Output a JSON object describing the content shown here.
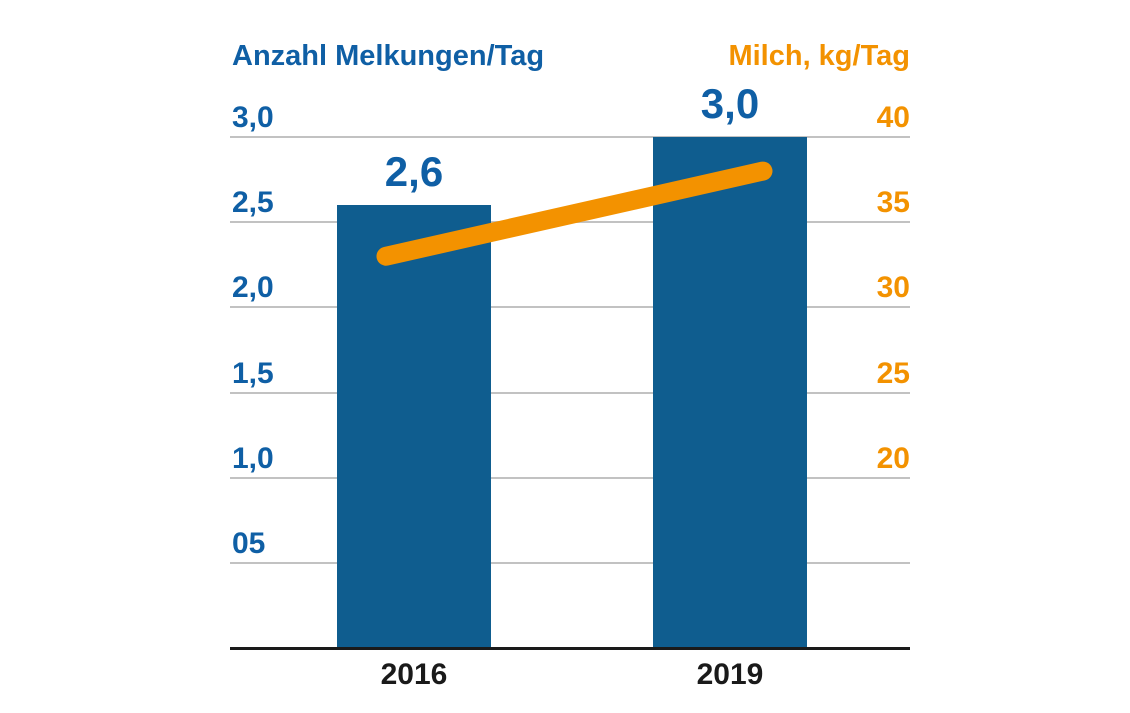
{
  "chart_data": {
    "type": "bar",
    "subtype": "bar-line-combo",
    "categories": [
      "2016",
      "2019"
    ],
    "series": [
      {
        "name": "Anzahl Melkungen/Tag",
        "type": "bar",
        "axis": "left",
        "values": [
          2.6,
          3.0
        ],
        "value_labels": [
          "2,6",
          "3,0"
        ],
        "color": "#0F5D8F"
      },
      {
        "name": "Milch, kg/Tag",
        "type": "line",
        "axis": "right",
        "values": [
          33,
          38
        ],
        "color": "#F39200"
      }
    ],
    "left_axis": {
      "title": "Anzahl Melkungen/Tag",
      "tick_labels": [
        "3,0",
        "2,5",
        "2,0",
        "1,5",
        "1,0",
        "05"
      ],
      "tick_values": [
        3.0,
        2.5,
        2.0,
        1.5,
        1.0,
        0.5
      ],
      "range": [
        0,
        3.0
      ],
      "color": "#0F5FA5"
    },
    "right_axis": {
      "title": "Milch, kg/Tag",
      "tick_labels": [
        "40",
        "35",
        "30",
        "25",
        "20"
      ],
      "tick_values": [
        40,
        35,
        30,
        25,
        20
      ],
      "range": [
        10,
        40
      ],
      "color": "#F39200"
    },
    "x_axis": {
      "labels": [
        "2016",
        "2019"
      ],
      "color": "#1A1A1A"
    },
    "grid": true,
    "legend": "none",
    "background": "#FFFFFF",
    "gridline_color": "#C2C2C2",
    "axis_line_color": "#1A1A1A"
  }
}
